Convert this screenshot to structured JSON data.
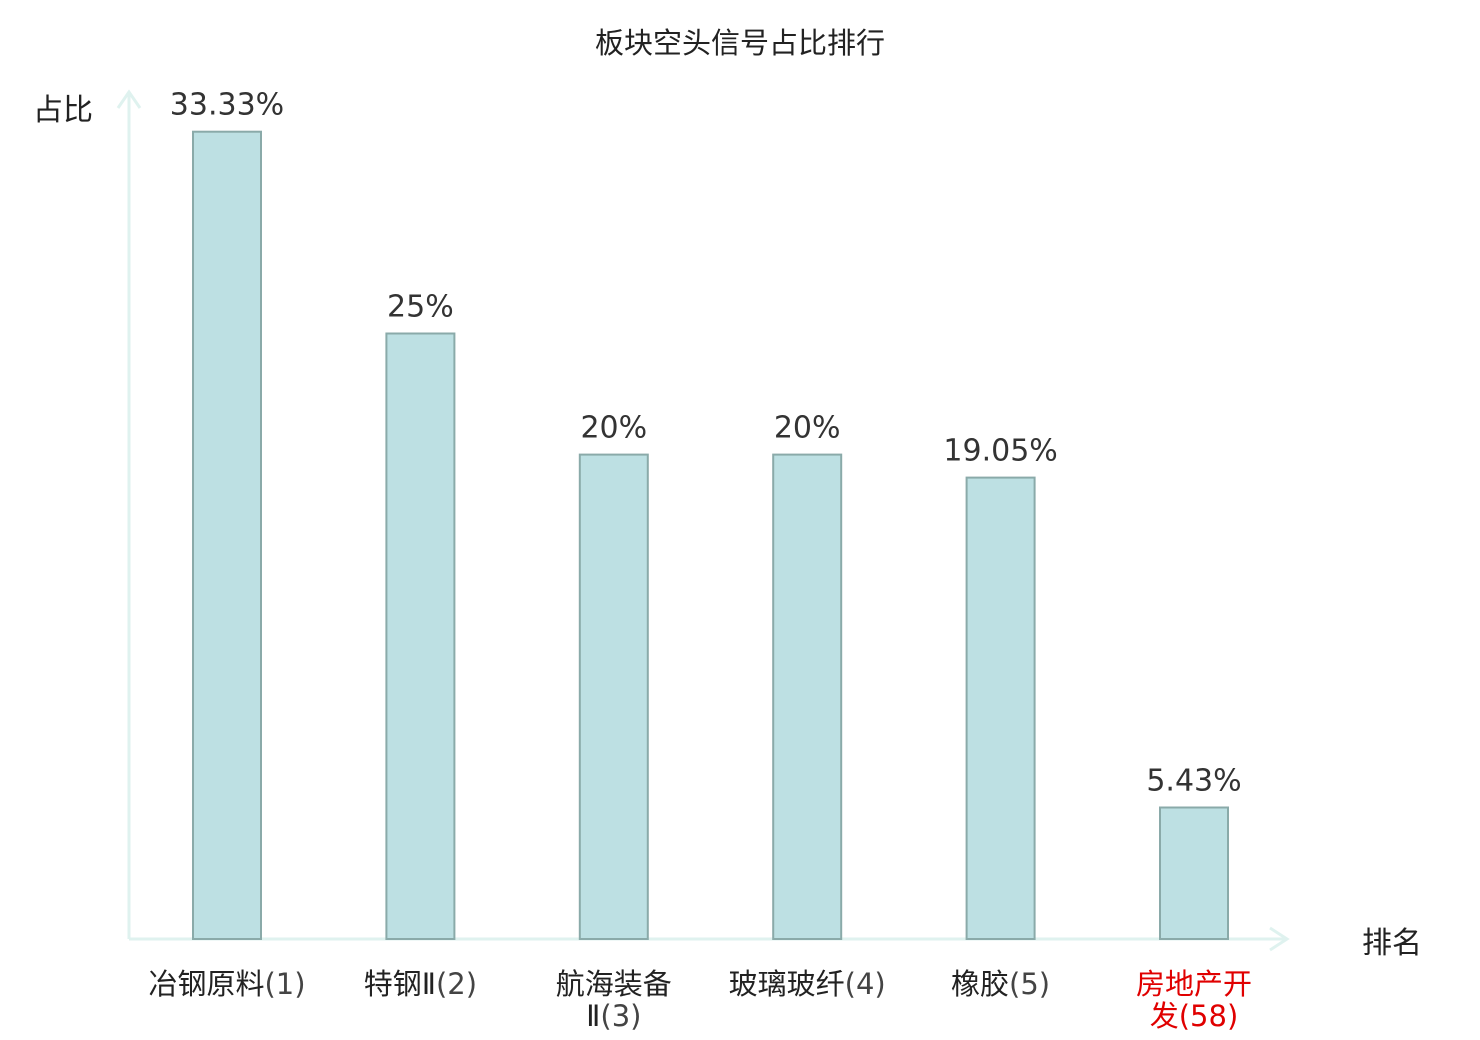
{
  "chart_data": {
    "type": "bar",
    "title": "板块空头信号占比排行",
    "xlabel": "排名",
    "ylabel": "占比",
    "ylim": [
      0,
      35
    ],
    "grid": false,
    "categories": [
      {
        "name": "冶钢原料",
        "rank": "(1)",
        "lines": [
          [
            "冶钢原料",
            "(1)"
          ]
        ],
        "highlight": false
      },
      {
        "name": "特钢Ⅱ",
        "rank": "(2)",
        "lines": [
          [
            "特钢Ⅱ",
            "(2)"
          ]
        ],
        "highlight": false
      },
      {
        "name": "航海装备Ⅱ",
        "rank": "(3)",
        "lines": [
          [
            "航海装备",
            ""
          ],
          [
            "Ⅱ",
            "(3)"
          ]
        ],
        "highlight": false
      },
      {
        "name": "玻璃玻纤",
        "rank": "(4)",
        "lines": [
          [
            "玻璃玻纤",
            "(4)"
          ]
        ],
        "highlight": false
      },
      {
        "name": "橡胶",
        "rank": "(5)",
        "lines": [
          [
            "橡胶",
            "(5)"
          ]
        ],
        "highlight": false
      },
      {
        "name": "房地产开发",
        "rank": "(58)",
        "lines": [
          [
            "房地产开",
            ""
          ],
          [
            "发",
            "(58)"
          ]
        ],
        "highlight": true
      }
    ],
    "values": [
      33.33,
      25,
      20,
      20,
      19.05,
      5.43
    ],
    "value_labels": [
      "33.33%",
      "25%",
      "20%",
      "20%",
      "19.05%",
      "5.43%"
    ]
  },
  "colors": {
    "bar_fill": "#bde0e3",
    "bar_stroke": "#8aaaa9",
    "axis": "#dff2ef",
    "highlight": "#e00000"
  }
}
